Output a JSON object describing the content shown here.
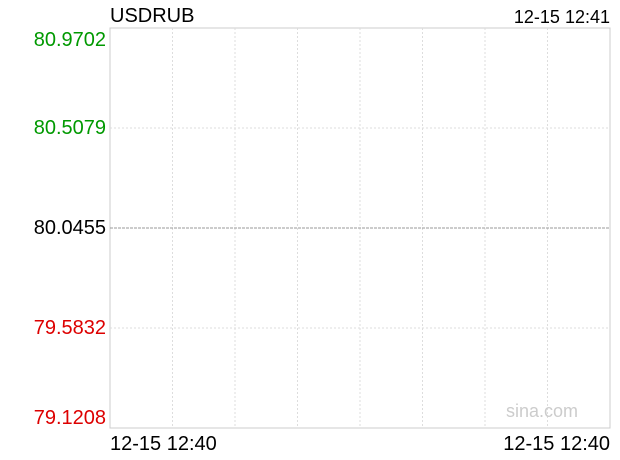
{
  "header": {
    "symbol": "USDRUB",
    "timestamp": "12-15 12:41"
  },
  "watermark": "sina.com",
  "colors": {
    "up": "#009900",
    "down": "#dd0000",
    "neutral": "#000000",
    "grid": "#dddddd",
    "baseline": "#999999"
  },
  "chart_data": {
    "type": "line",
    "title": "USDRUB",
    "y_ticks": [
      {
        "value": 80.9702,
        "label": "80.9702",
        "tone": "up"
      },
      {
        "value": 80.5079,
        "label": "80.5079",
        "tone": "up"
      },
      {
        "value": 80.0455,
        "label": "80.0455",
        "tone": "neutral"
      },
      {
        "value": 79.5832,
        "label": "79.5832",
        "tone": "down"
      },
      {
        "value": 79.1208,
        "label": "79.1208",
        "tone": "down"
      }
    ],
    "ylim": [
      79.1208,
      80.9702
    ],
    "baseline": 80.0455,
    "x_labels": [
      "12-15 12:40",
      "12-15 12:40"
    ],
    "x_gridlines": 8,
    "series": [],
    "grid": true
  }
}
